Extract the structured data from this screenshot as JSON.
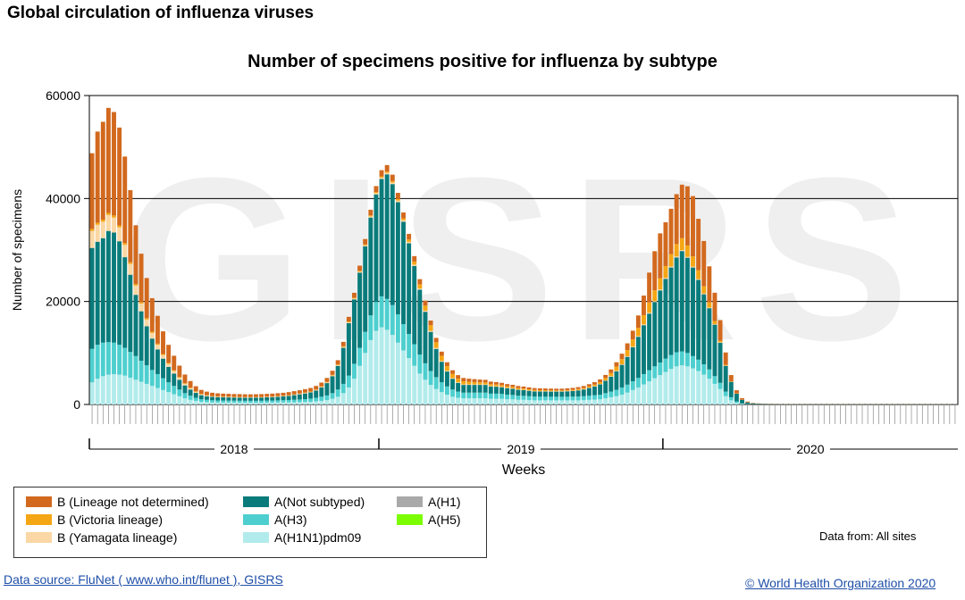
{
  "page": {
    "title": "Global circulation of influenza viruses",
    "data_from": "Data from: All sites",
    "source_link": "Data source: FluNet ( www.who.int/flunet ), GISRS",
    "copyright_link": "© World Health Organization 2020",
    "watermark": "GISRS"
  },
  "chart_data": {
    "type": "bar",
    "stacked": true,
    "title": "Number of specimens positive for influenza by subtype",
    "xlabel": "Weeks",
    "ylabel": "Number of specimens",
    "ylim": [
      0,
      60000
    ],
    "yticks": [
      0,
      20000,
      40000,
      60000
    ],
    "grid": true,
    "years": [
      "2018",
      "2019",
      "2020"
    ],
    "series": [
      {
        "name": "A(H1N1)pdm09",
        "color": "#b2ebeb",
        "values": [
          4300,
          5000,
          5500,
          5800,
          5900,
          5800,
          5600,
          5200,
          4800,
          4400,
          4000,
          3600,
          3200,
          2800,
          2400,
          2000,
          1600,
          1200,
          900,
          700,
          500,
          450,
          400,
          380,
          370,
          370,
          360,
          360,
          350,
          350,
          350,
          350,
          360,
          370,
          380,
          390,
          400,
          420,
          450,
          480,
          520,
          600,
          700,
          850,
          1100,
          1500,
          2200,
          3300,
          5000,
          7500,
          10000,
          12500,
          14300,
          15000,
          14500,
          13500,
          12000,
          10500,
          9000,
          7500,
          6000,
          4800,
          3800,
          3000,
          2400,
          1900,
          1500,
          1300,
          1200,
          1200,
          1200,
          1200,
          1200,
          1100,
          1100,
          1100,
          1000,
          1000,
          900,
          900,
          850,
          800,
          800,
          800,
          800,
          800,
          800,
          800,
          800,
          800,
          850,
          900,
          950,
          1000,
          1200,
          1400,
          1600,
          1900,
          2300,
          2800,
          3300,
          3900,
          4500,
          5100,
          5700,
          6300,
          6900,
          7400,
          7600,
          7400,
          7000,
          6500,
          5800,
          5000,
          4000,
          3000,
          1600,
          800,
          300,
          100,
          60,
          40,
          30,
          25,
          20,
          20,
          20,
          20,
          20,
          20,
          20,
          20,
          20,
          20,
          20,
          20,
          20,
          20,
          20,
          20,
          20,
          20,
          20,
          20,
          20,
          20,
          20,
          20,
          20,
          20,
          20,
          20,
          20,
          20,
          20,
          20,
          20,
          20,
          20
        ]
      },
      {
        "name": "A(H3)",
        "color": "#4ecfcf",
        "values": [
          6500,
          6600,
          6500,
          6300,
          6100,
          5800,
          5400,
          5000,
          4600,
          4100,
          3600,
          3100,
          2700,
          2300,
          1900,
          1600,
          1300,
          1000,
          800,
          600,
          500,
          450,
          420,
          400,
          390,
          380,
          380,
          370,
          370,
          370,
          370,
          380,
          390,
          400,
          420,
          440,
          460,
          490,
          520,
          560,
          620,
          700,
          800,
          900,
          1100,
          1400,
          1800,
          2300,
          2900,
          3500,
          4100,
          4800,
          5600,
          6000,
          6000,
          5800,
          5500,
          5100,
          4700,
          4200,
          3700,
          3200,
          2700,
          2300,
          1900,
          1600,
          1400,
          1200,
          1100,
          1100,
          1100,
          1100,
          1100,
          1000,
          1000,
          950,
          900,
          850,
          800,
          780,
          760,
          740,
          720,
          710,
          700,
          700,
          700,
          710,
          720,
          740,
          760,
          800,
          850,
          900,
          1000,
          1100,
          1250,
          1400,
          1550,
          1700,
          1850,
          2000,
          2150,
          2300,
          2450,
          2600,
          2700,
          2750,
          2700,
          2600,
          2400,
          2200,
          2000,
          1800,
          1500,
          1200,
          900,
          600,
          300,
          100,
          30,
          20,
          20,
          15,
          10,
          10,
          10,
          10,
          10,
          10,
          10,
          10,
          10,
          10,
          10,
          10,
          10,
          10,
          10,
          10,
          10,
          10,
          10,
          10,
          10,
          10,
          10,
          10,
          10,
          10,
          10,
          10,
          10,
          10,
          10,
          10,
          10,
          10,
          10
        ]
      },
      {
        "name": "A(Not subtyped)",
        "color": "#0a7b7b",
        "values": [
          19600,
          20000,
          20300,
          21600,
          21400,
          20100,
          17600,
          15000,
          11900,
          9600,
          7600,
          6100,
          4800,
          3800,
          3000,
          2400,
          1900,
          1500,
          1200,
          950,
          800,
          700,
          650,
          640,
          630,
          620,
          610,
          610,
          600,
          600,
          610,
          620,
          640,
          660,
          690,
          730,
          800,
          900,
          1000,
          1100,
          1200,
          1400,
          1800,
          2400,
          3300,
          4600,
          7000,
          10200,
          12500,
          14600,
          16600,
          19000,
          20900,
          22800,
          24200,
          23500,
          21800,
          19900,
          17600,
          15200,
          12600,
          10000,
          7600,
          5500,
          4000,
          2900,
          2100,
          1700,
          1500,
          1500,
          1500,
          1500,
          1500,
          1400,
          1350,
          1300,
          1250,
          1200,
          1150,
          1100,
          1050,
          1000,
          1000,
          1000,
          1000,
          1000,
          1000,
          1050,
          1100,
          1200,
          1300,
          1500,
          1700,
          2000,
          2400,
          2900,
          3600,
          4400,
          5400,
          6600,
          8000,
          9500,
          11000,
          12500,
          14000,
          15500,
          17000,
          18400,
          19500,
          18500,
          17200,
          15500,
          13600,
          11900,
          10000,
          7800,
          5000,
          3000,
          1500,
          700,
          300,
          150,
          90,
          50,
          40,
          30,
          25,
          20,
          20,
          20,
          20,
          20,
          20,
          20,
          20,
          20,
          20,
          20,
          20,
          20,
          20,
          20,
          20,
          20,
          20,
          20,
          20,
          20,
          20,
          20,
          20,
          20,
          20,
          20,
          20,
          20,
          20,
          20,
          20,
          20
        ]
      },
      {
        "name": "A(H1)",
        "color": "#a9a9a9",
        "values": [
          0,
          0,
          0,
          0,
          0,
          0,
          0,
          0,
          0,
          0,
          0,
          0,
          0,
          0,
          0,
          0,
          0,
          0,
          0,
          0,
          0,
          0,
          0,
          0,
          0,
          0,
          0,
          0,
          0,
          0,
          0,
          0,
          0,
          0,
          0,
          0,
          0,
          0,
          0,
          0,
          0,
          0,
          0,
          0,
          0,
          0,
          0,
          0,
          0,
          0,
          0,
          0,
          0,
          0,
          0,
          0,
          0,
          0,
          0,
          0,
          0,
          0,
          0,
          0,
          0,
          0,
          0,
          0,
          0,
          0,
          0,
          0,
          0,
          0,
          0,
          0,
          0,
          0,
          0,
          0,
          0,
          0,
          0,
          0,
          0,
          0,
          0,
          0,
          0,
          0,
          0,
          0,
          0,
          0,
          0,
          0,
          0,
          0,
          0,
          0,
          0,
          0,
          0,
          0,
          0,
          0,
          0,
          0,
          0,
          0,
          0,
          0,
          0,
          0,
          0,
          0,
          0,
          0,
          0,
          0,
          0,
          0,
          0,
          0,
          0,
          0,
          0,
          0,
          0,
          0,
          0,
          0,
          0,
          0,
          0,
          0,
          0,
          0,
          0,
          0,
          0,
          0,
          0,
          0,
          0,
          0,
          0,
          0,
          0,
          0,
          0,
          0,
          0,
          0,
          0,
          0
        ]
      },
      {
        "name": "A(H5)",
        "color": "#7cfc00",
        "values": [
          0,
          0,
          0,
          0,
          0,
          0,
          0,
          0,
          0,
          0,
          0,
          0,
          0,
          0,
          0,
          0,
          0,
          0,
          0,
          0,
          0,
          0,
          0,
          0,
          0,
          0,
          0,
          0,
          0,
          0,
          0,
          0,
          0,
          0,
          0,
          0,
          0,
          0,
          0,
          0,
          0,
          0,
          0,
          0,
          0,
          0,
          0,
          0,
          0,
          0,
          0,
          0,
          0,
          0,
          0,
          0,
          0,
          0,
          0,
          0,
          0,
          0,
          0,
          0,
          0,
          0,
          0,
          0,
          0,
          0,
          0,
          0,
          0,
          0,
          0,
          0,
          0,
          0,
          0,
          0,
          0,
          0,
          0,
          0,
          0,
          0,
          0,
          0,
          0,
          0,
          0,
          0,
          0,
          0,
          0,
          0,
          0,
          0,
          0,
          0,
          0,
          0,
          0,
          0,
          0,
          0,
          0,
          0,
          0,
          0,
          0,
          0,
          0,
          0,
          0,
          0,
          0,
          0,
          0,
          0,
          0,
          0,
          0,
          0,
          0,
          0,
          0,
          0,
          0,
          0,
          0,
          0,
          0,
          0,
          0,
          0,
          0,
          0,
          0,
          0,
          0,
          0,
          0,
          0,
          0,
          0,
          0,
          0,
          0,
          0,
          0,
          0,
          0,
          0,
          0,
          0
        ]
      },
      {
        "name": "B (Yamagata lineage)",
        "color": "#fad7a4",
        "values": [
          3300,
          3300,
          3200,
          3100,
          2900,
          2700,
          2400,
          2100,
          1800,
          1500,
          1300,
          1100,
          900,
          700,
          600,
          500,
          400,
          300,
          250,
          200,
          150,
          120,
          100,
          90,
          80,
          80,
          70,
          70,
          70,
          70,
          70,
          70,
          70,
          70,
          80,
          80,
          80,
          90,
          90,
          100,
          100,
          110,
          120,
          130,
          140,
          150,
          160,
          170,
          180,
          190,
          200,
          220,
          240,
          260,
          280,
          300,
          300,
          300,
          280,
          260,
          240,
          220,
          200,
          180,
          160,
          140,
          130,
          120,
          110,
          110,
          100,
          100,
          100,
          90,
          90,
          90,
          80,
          80,
          80,
          70,
          70,
          70,
          70,
          70,
          70,
          70,
          70,
          70,
          70,
          70,
          80,
          80,
          80,
          90,
          90,
          100,
          100,
          110,
          120,
          130,
          140,
          150,
          160,
          170,
          180,
          190,
          200,
          200,
          190,
          180,
          170,
          160,
          150,
          130,
          100,
          80,
          50,
          30,
          20,
          10,
          10,
          5,
          5,
          5,
          5,
          5,
          5,
          5,
          5,
          5,
          5,
          5,
          5,
          5,
          5,
          5,
          5,
          5,
          5,
          5,
          5,
          5,
          5,
          5,
          5,
          5,
          5,
          5,
          5,
          5,
          5,
          5,
          5,
          5,
          5,
          5
        ]
      },
      {
        "name": "B (Victoria lineage)",
        "color": "#f5a614",
        "values": [
          400,
          400,
          400,
          400,
          400,
          380,
          350,
          320,
          300,
          280,
          260,
          240,
          220,
          200,
          180,
          160,
          140,
          120,
          100,
          90,
          80,
          70,
          60,
          60,
          60,
          60,
          60,
          60,
          60,
          60,
          60,
          60,
          60,
          60,
          60,
          60,
          70,
          70,
          70,
          80,
          80,
          90,
          100,
          110,
          120,
          130,
          140,
          150,
          160,
          170,
          180,
          200,
          220,
          240,
          260,
          280,
          300,
          350,
          450,
          600,
          800,
          1000,
          1100,
          1100,
          1000,
          900,
          800,
          700,
          600,
          500,
          450,
          400,
          380,
          360,
          340,
          320,
          300,
          280,
          260,
          240,
          220,
          200,
          190,
          180,
          170,
          160,
          160,
          160,
          170,
          180,
          200,
          230,
          280,
          350,
          450,
          600,
          800,
          1000,
          1200,
          1400,
          1600,
          1800,
          2000,
          2100,
          2200,
          2300,
          2400,
          2400,
          2300,
          2200,
          2000,
          1700,
          1400,
          1000,
          600,
          300,
          150,
          80,
          40,
          20,
          15,
          10,
          10,
          10,
          10,
          10,
          10,
          10,
          10,
          10,
          10,
          10,
          10,
          10,
          10,
          10,
          10,
          10,
          10,
          10,
          10,
          10,
          10,
          10,
          10,
          10,
          10,
          10,
          10,
          10,
          10,
          10,
          10,
          10,
          10,
          10,
          10,
          10
        ]
      },
      {
        "name": "B (Lineage not determined)",
        "color": "#d2691e",
        "values": [
          14700,
          17700,
          19000,
          20400,
          20100,
          19000,
          16800,
          14000,
          11400,
          9400,
          7800,
          6500,
          5400,
          4400,
          3500,
          2800,
          2200,
          1700,
          1300,
          1000,
          800,
          700,
          650,
          600,
          580,
          560,
          550,
          540,
          530,
          520,
          520,
          530,
          540,
          550,
          560,
          570,
          590,
          610,
          630,
          650,
          680,
          700,
          730,
          760,
          790,
          820,
          860,
          900,
          950,
          1000,
          1050,
          1100,
          1150,
          1200,
          1250,
          1250,
          1200,
          1150,
          1100,
          1050,
          1000,
          950,
          900,
          850,
          800,
          760,
          720,
          680,
          640,
          600,
          570,
          540,
          510,
          490,
          470,
          450,
          430,
          410,
          400,
          390,
          380,
          370,
          360,
          350,
          340,
          340,
          340,
          350,
          360,
          380,
          400,
          430,
          470,
          520,
          600,
          700,
          850,
          1050,
          1300,
          1700,
          2400,
          3800,
          5800,
          7600,
          8700,
          8500,
          8800,
          9700,
          10400,
          11500,
          11700,
          10000,
          8800,
          7000,
          5500,
          4000,
          2400,
          1200,
          600,
          300,
          150,
          80,
          50,
          40,
          30,
          25,
          20,
          20,
          20,
          20,
          20,
          20,
          20,
          20,
          20,
          20,
          20,
          20,
          20,
          20,
          20,
          20,
          20,
          20,
          20,
          20,
          20,
          20,
          20,
          20,
          20,
          20,
          20,
          20,
          20,
          20,
          20,
          20,
          20
        ]
      }
    ]
  }
}
